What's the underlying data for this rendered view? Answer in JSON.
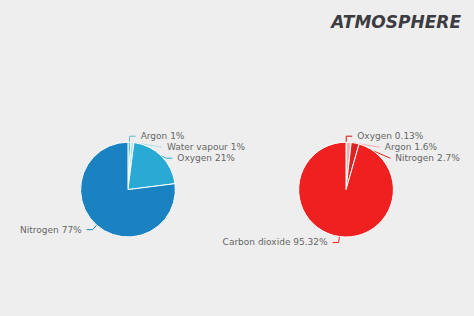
{
  "chart_data": [
    {
      "type": "pie",
      "title": "ATMOSPHERE",
      "categories": [
        "Argon 1%",
        "Water vapour 1%",
        "Oxygen 21%",
        "Nitrogen 77%"
      ],
      "values": [
        1,
        1,
        21,
        77
      ],
      "colors": [
        "#5bbdd4",
        "#b0dde8",
        "#29aad4",
        "#1a82c0"
      ]
    },
    {
      "type": "pie",
      "categories": [
        "Oxygen 0.13%",
        "Argon 1.6%",
        "Nitrogen 2.7%",
        "Carbon dioxide 95.32%"
      ],
      "values": [
        0.13,
        1.6,
        2.7,
        95.32
      ],
      "colors": [
        "#cc1111",
        "#ffaaaa",
        "#dd2222",
        "#ee2020"
      ]
    }
  ]
}
